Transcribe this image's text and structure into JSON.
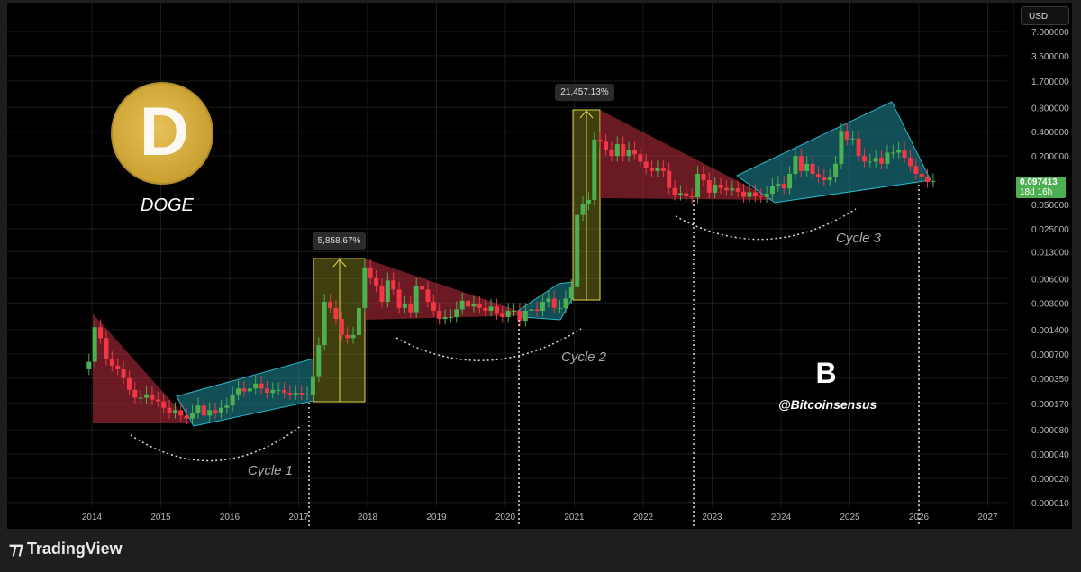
{
  "header": {
    "currency_button": "USD"
  },
  "price_label": {
    "value": "0.097413",
    "countdown": "18d 16h",
    "color": "#4caf50"
  },
  "branding": {
    "asset": "DOGE",
    "watermark_handle": "@Bitcoinsensus",
    "watermark_logo": "B",
    "footer_logo": "TradingView"
  },
  "annotations": {
    "measure_1": "5,858.67%",
    "measure_2": "21,457.13%",
    "cycles": [
      "Cycle 1",
      "Cycle 2",
      "Cycle 3"
    ]
  },
  "colors": {
    "up": "#4caf50",
    "down": "#f23645",
    "bear_zone": "#c0303f",
    "bull_zone": "#1f8e9a",
    "measure_zone": "#8a8a20"
  },
  "chart_data": {
    "type": "candlestick",
    "interval": "monthly",
    "scale": "log",
    "grid": true,
    "ylim": [
      1e-05,
      7.0
    ],
    "xlim": [
      2013,
      2027.3
    ],
    "x_ticks": [
      "2014",
      "2015",
      "2016",
      "2017",
      "2018",
      "2019",
      "2020",
      "2021",
      "2022",
      "2023",
      "2024",
      "2025",
      "2026",
      "2027"
    ],
    "y_ticks": [
      "7.000000",
      "3.500000",
      "1.700000",
      "0.800000",
      "0.400000",
      "0.200000",
      "0.050000",
      "0.025000",
      "0.013000",
      "0.006000",
      "0.003000",
      "0.001400",
      "0.000700",
      "0.000350",
      "0.000170",
      "0.000080",
      "0.000040",
      "0.000020",
      "0.000010"
    ],
    "start": "2013-12",
    "first_open": 0.00045,
    "closes": [
      0.00056,
      0.0015,
      0.0011,
      0.0006,
      0.0005,
      0.00045,
      0.00035,
      0.00025,
      0.0002,
      0.0002,
      0.00022,
      0.00019,
      0.00018,
      0.00015,
      0.00013,
      0.00014,
      0.00012,
      0.00011,
      0.00013,
      0.00016,
      0.00012,
      0.00014,
      0.00013,
      0.00015,
      0.00016,
      0.00022,
      0.00026,
      0.00024,
      0.00026,
      0.0003,
      0.00026,
      0.00023,
      0.00025,
      0.00025,
      0.00023,
      0.00022,
      0.00023,
      0.00022,
      0.00022,
      0.00037,
      0.0009,
      0.0031,
      0.0026,
      0.0019,
      0.0012,
      0.0011,
      0.0012,
      0.0026,
      0.0083,
      0.0061,
      0.0048,
      0.0031,
      0.0057,
      0.0044,
      0.0026,
      0.0029,
      0.0023,
      0.0049,
      0.0044,
      0.0031,
      0.0024,
      0.0019,
      0.002,
      0.002,
      0.0025,
      0.0032,
      0.0027,
      0.0029,
      0.0026,
      0.0024,
      0.0027,
      0.0022,
      0.002,
      0.0024,
      0.0024,
      0.0018,
      0.0024,
      0.0025,
      0.0024,
      0.0031,
      0.0034,
      0.0026,
      0.0026,
      0.0034,
      0.0047,
      0.037,
      0.05,
      0.057,
      0.32,
      0.3,
      0.24,
      0.2,
      0.28,
      0.2,
      0.24,
      0.21,
      0.17,
      0.14,
      0.13,
      0.14,
      0.13,
      0.08,
      0.066,
      0.069,
      0.063,
      0.061,
      0.12,
      0.1,
      0.07,
      0.088,
      0.08,
      0.075,
      0.079,
      0.072,
      0.062,
      0.071,
      0.063,
      0.062,
      0.068,
      0.085,
      0.09,
      0.079,
      0.12,
      0.2,
      0.13,
      0.16,
      0.12,
      0.11,
      0.1,
      0.11,
      0.16,
      0.41,
      0.32,
      0.33,
      0.2,
      0.17,
      0.17,
      0.19,
      0.16,
      0.22,
      0.22,
      0.24,
      0.19,
      0.15,
      0.12,
      0.11,
      0.095,
      0.097413
    ]
  }
}
